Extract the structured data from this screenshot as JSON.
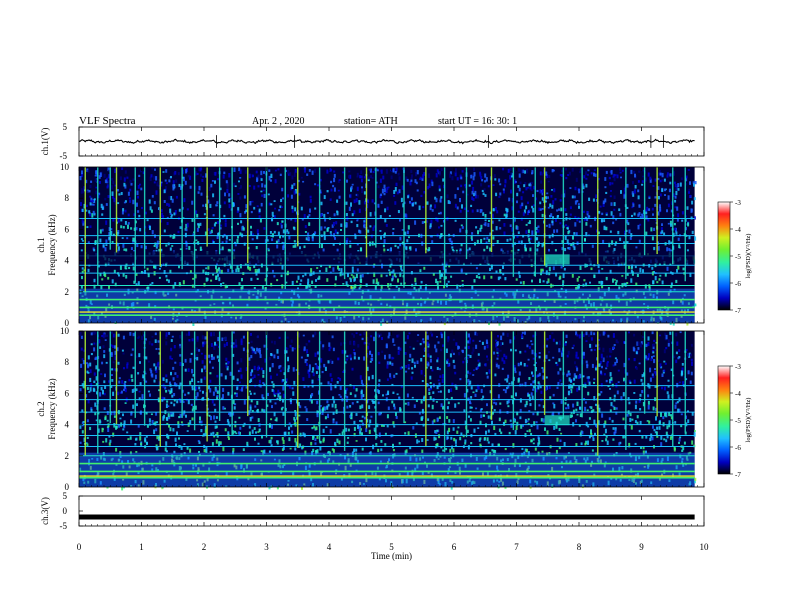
{
  "header": {
    "title": "VLF  Spectra",
    "date": "Apr. 2  , 2020",
    "station": "station= ATH",
    "start": "start  UT  =    16: 30: 1"
  },
  "chart_data": [
    {
      "type": "line",
      "panel": "ch.1 waveform",
      "ylabel": "ch.1(V)",
      "ylim": [
        -5,
        5
      ],
      "yticks": [
        "5",
        "-5"
      ],
      "xlim": [
        0,
        10
      ],
      "series": [
        {
          "level": 0.0,
          "amplitude": 0.6
        }
      ],
      "color": "#000000"
    },
    {
      "type": "heatmap",
      "panel": "ch.1 spectrogram",
      "ylabel": "ch.1\nFrequency  (kHz)",
      "ylim": [
        0,
        10
      ],
      "yticks": [
        "0",
        "2",
        "4",
        "6",
        "8",
        "10"
      ],
      "xlim": [
        0,
        10
      ],
      "colorbar": {
        "label": "log(PSD)(V²/Hz)",
        "range": [
          -7,
          -3
        ],
        "ticks": [
          "-3",
          "-4",
          "-5",
          "-6",
          "-7"
        ]
      },
      "spikes_min": [
        0.1,
        0.3,
        0.5,
        0.6,
        0.9,
        1.05,
        1.3,
        1.65,
        1.85,
        2.05,
        2.25,
        2.45,
        2.7,
        3.0,
        3.3,
        3.5,
        3.85,
        4.25,
        4.6,
        4.75,
        5.2,
        5.55,
        5.85,
        6.2,
        6.6,
        6.95,
        7.3,
        7.45,
        7.75,
        8.05,
        8.3,
        8.75,
        9.05,
        9.25,
        9.5,
        9.7
      ],
      "lines_khz": [
        0.5,
        1.0,
        1.5,
        2.0,
        2.4,
        3.2,
        3.7,
        4.3,
        5.1,
        5.6,
        6.7
      ]
    },
    {
      "type": "heatmap",
      "panel": "ch.2 spectrogram",
      "ylabel": "ch.2\nFrequency  (kHz)",
      "ylim": [
        0,
        10
      ],
      "yticks": [
        "0",
        "2",
        "4",
        "6",
        "8",
        "10"
      ],
      "xlim": [
        0,
        10
      ],
      "colorbar": {
        "label": "log(PSD)(V²/Hz)",
        "range": [
          -7,
          -3
        ],
        "ticks": [
          "-3",
          "-4",
          "-5",
          "-6",
          "-7"
        ]
      },
      "spikes_min": [
        0.1,
        0.3,
        0.5,
        0.6,
        0.9,
        1.05,
        1.3,
        1.65,
        1.85,
        2.05,
        2.25,
        2.45,
        2.7,
        3.0,
        3.3,
        3.5,
        3.85,
        4.25,
        4.6,
        4.75,
        5.2,
        5.55,
        5.85,
        6.2,
        6.6,
        6.95,
        7.3,
        7.45,
        7.75,
        8.05,
        8.3,
        8.75,
        9.05,
        9.25,
        9.5,
        9.7
      ],
      "lines_khz": [
        0.6,
        1.0,
        1.5,
        2.0,
        2.6,
        3.3,
        4.0,
        4.8,
        5.6,
        6.5
      ]
    },
    {
      "type": "line",
      "panel": "ch.3 waveform",
      "ylabel": "ch.3(V)",
      "ylim": [
        -5,
        5
      ],
      "yticks": [
        "5",
        "0",
        "-5"
      ],
      "xlim": [
        0,
        10
      ],
      "series": [
        {
          "level": -2.0,
          "amplitude": 0.05
        }
      ],
      "color": "#000000"
    }
  ],
  "xaxis": {
    "label": "Time  (min)",
    "ticks": [
      "0",
      "1",
      "2",
      "3",
      "4",
      "5",
      "6",
      "7",
      "8",
      "9",
      "10"
    ]
  },
  "colors": {
    "background": "#00003a",
    "spike": "#20d8c0",
    "frame": "#000000"
  }
}
